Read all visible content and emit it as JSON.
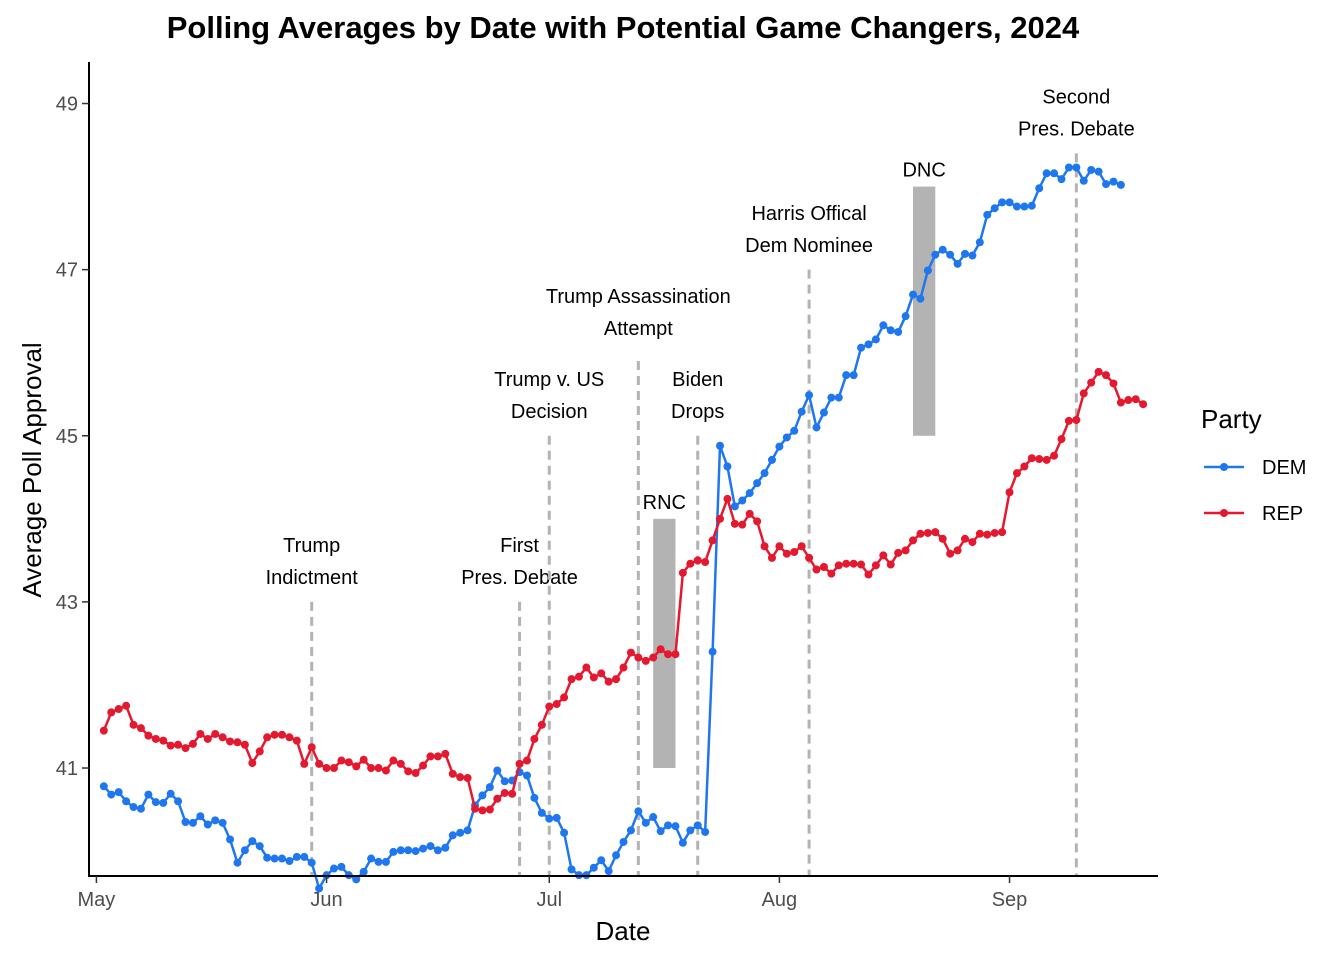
{
  "chart_data": {
    "type": "line",
    "title": "Polling Averages by Date with Potential Game Changers, 2024",
    "xlabel": "Date",
    "ylabel": "Average Poll Approval",
    "x_axis": {
      "min": "2024-04-30",
      "max": "2024-09-21",
      "ticks": [
        {
          "date": "2024-05-01",
          "label": "May"
        },
        {
          "date": "2024-06-01",
          "label": "Jun"
        },
        {
          "date": "2024-07-01",
          "label": "Jul"
        },
        {
          "date": "2024-08-01",
          "label": "Aug"
        },
        {
          "date": "2024-09-01",
          "label": "Sep"
        }
      ]
    },
    "y_axis": {
      "min": 39.7,
      "max": 49.5,
      "ticks": [
        41,
        43,
        45,
        47,
        49
      ]
    },
    "grid": false,
    "legend": {
      "title": "Party",
      "position": "right"
    },
    "series_start_date": "2024-05-02",
    "series": [
      {
        "name": "DEM",
        "color": "#1f77f0",
        "values": [
          40.78,
          40.68,
          40.71,
          40.6,
          40.53,
          40.51,
          40.68,
          40.59,
          40.58,
          40.69,
          40.6,
          40.35,
          40.34,
          40.42,
          40.32,
          40.37,
          40.34,
          40.14,
          39.86,
          40.01,
          40.12,
          40.06,
          39.92,
          39.91,
          39.91,
          39.88,
          39.93,
          39.93,
          39.86,
          39.55,
          39.71,
          39.79,
          39.81,
          39.71,
          39.66,
          39.75,
          39.91,
          39.87,
          39.87,
          39.99,
          40.01,
          40.01,
          40.0,
          40.03,
          40.06,
          40.01,
          40.04,
          40.19,
          40.22,
          40.25,
          40.55,
          40.67,
          40.77,
          40.97,
          40.84,
          40.85,
          40.95,
          40.91,
          40.64,
          40.46,
          40.39,
          40.4,
          40.22,
          39.78,
          39.71,
          39.71,
          39.8,
          39.89,
          39.76,
          39.95,
          40.11,
          40.25,
          40.48,
          40.34,
          40.41,
          40.24,
          40.31,
          40.3,
          40.1,
          40.25,
          40.31,
          40.23,
          42.4,
          44.88,
          44.63,
          44.15,
          44.22,
          44.31,
          44.43,
          44.55,
          44.71,
          44.87,
          44.98,
          45.06,
          45.29,
          45.49,
          45.1,
          45.28,
          45.46,
          45.46,
          45.73,
          45.73,
          46.06,
          46.1,
          46.16,
          46.33,
          46.27,
          46.25,
          46.44,
          46.7,
          46.65,
          46.99,
          47.18,
          47.24,
          47.18,
          47.07,
          47.19,
          47.17,
          47.33,
          47.66,
          47.74,
          47.81,
          47.81,
          47.76,
          47.76,
          47.77,
          47.98,
          48.16,
          48.16,
          48.09,
          48.23,
          48.23,
          48.07,
          48.2,
          48.18,
          48.03,
          48.06,
          48.02
        ]
      },
      {
        "name": "REP",
        "color": "#e4182e",
        "values": [
          41.45,
          41.67,
          41.71,
          41.75,
          41.52,
          41.48,
          41.39,
          41.35,
          41.33,
          41.27,
          41.28,
          41.24,
          41.29,
          41.41,
          41.35,
          41.41,
          41.37,
          41.32,
          41.31,
          41.28,
          41.06,
          41.2,
          41.37,
          41.4,
          41.4,
          41.37,
          41.33,
          41.05,
          41.25,
          41.05,
          41.0,
          41.0,
          41.09,
          41.07,
          41.02,
          41.1,
          41.0,
          41.0,
          40.97,
          41.09,
          41.05,
          40.96,
          40.94,
          41.03,
          41.14,
          41.14,
          41.17,
          40.93,
          40.89,
          40.88,
          40.51,
          40.49,
          40.5,
          40.63,
          40.7,
          40.69,
          41.05,
          41.09,
          41.35,
          41.52,
          41.74,
          41.77,
          41.85,
          42.07,
          42.1,
          42.21,
          42.09,
          42.14,
          42.04,
          42.07,
          42.21,
          42.39,
          42.33,
          42.29,
          42.33,
          42.43,
          42.37,
          42.37,
          43.35,
          43.46,
          43.5,
          43.48,
          43.74,
          44.0,
          44.24,
          43.94,
          43.93,
          44.06,
          43.97,
          43.67,
          43.53,
          43.67,
          43.58,
          43.6,
          43.67,
          43.53,
          43.39,
          43.42,
          43.34,
          43.44,
          43.46,
          43.46,
          43.45,
          43.33,
          43.44,
          43.56,
          43.45,
          43.59,
          43.62,
          43.74,
          43.82,
          43.83,
          43.84,
          43.76,
          43.58,
          43.62,
          43.76,
          43.72,
          43.82,
          43.81,
          43.83,
          43.84,
          44.32,
          44.55,
          44.63,
          44.73,
          44.72,
          44.71,
          44.76,
          44.96,
          45.18,
          45.19,
          45.51,
          45.64,
          45.77,
          45.73,
          45.63,
          45.4,
          45.43,
          45.44,
          45.38
        ]
      }
    ],
    "events": [
      {
        "date": "2024-05-30",
        "label_lines": [
          "Trump",
          "Indictment"
        ],
        "y_top": 43.0,
        "label_y": 43.6
      },
      {
        "date": "2024-06-27",
        "label_lines": [
          "First",
          "Pres. Debate"
        ],
        "y_top": 43.0,
        "label_y": 43.6
      },
      {
        "date": "2024-07-01",
        "label_lines": [
          "Trump v. US",
          "Decision"
        ],
        "y_top": 45.0,
        "label_y": 45.6
      },
      {
        "date": "2024-07-13",
        "label_lines": [
          "Trump Assassination",
          "Attempt"
        ],
        "y_top": 45.9,
        "label_y": 46.6
      },
      {
        "date": "2024-07-21",
        "label_lines": [
          "Biden",
          "Drops"
        ],
        "y_top": 45.0,
        "label_y": 45.6
      },
      {
        "date": "2024-08-05",
        "label_lines": [
          "Harris Offical",
          "Dem Nominee"
        ],
        "y_top": 47.0,
        "label_y": 47.6
      },
      {
        "date": "2024-09-10",
        "label_lines": [
          "Second",
          "Pres. Debate"
        ],
        "y_top": 48.4,
        "label_y": 49.0
      }
    ],
    "periods": [
      {
        "label": "RNC",
        "start": "2024-07-15",
        "end": "2024-07-18",
        "y_min": 41.0,
        "y_max": 44.0
      },
      {
        "label": "DNC",
        "start": "2024-08-19",
        "end": "2024-08-22",
        "y_min": 45.0,
        "y_max": 48.0
      }
    ]
  }
}
